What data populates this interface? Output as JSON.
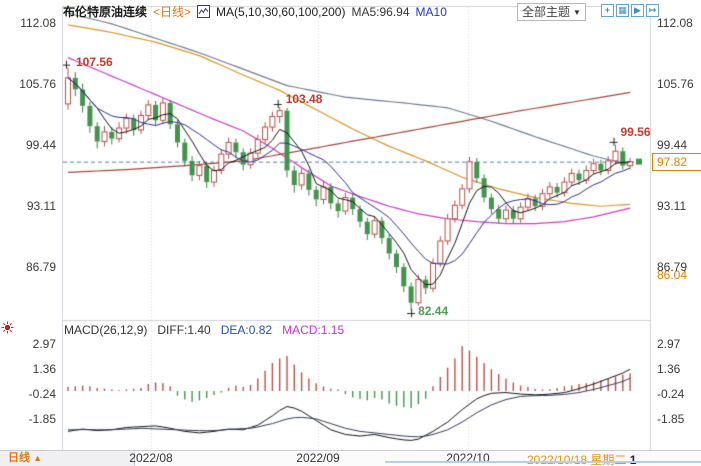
{
  "header": {
    "symbol": "布伦特原油连续",
    "period": "<日线>",
    "ma_settings": "MA(5,10,30,60,100,200)",
    "ma5": "MA5:96.94",
    "ma10": "MA10",
    "theme_selector": "全部主题",
    "theme_arrow": "▼",
    "toolbar_glyphs": [
      "+",
      "▦",
      "▶",
      "↦"
    ]
  },
  "macd_pane": {
    "legend_name": "MACD(26,12,9)",
    "diff_label": "DIFF:1.40",
    "dea_label": "DEA:0.82",
    "macd_label": "MACD:1.15"
  },
  "footer": {
    "period": "日线",
    "arrow": "▲"
  },
  "x_axis": {
    "current_date": "2022/10/18 星期二",
    "current_suffix": "1"
  },
  "colors": {
    "up": "#b5524c",
    "down": "#44934e",
    "down_stroke": "#37813f",
    "dashed_line": "#4d87ae",
    "current_price": "#e08200",
    "annotation_red": "#c5392c",
    "annotation_green": "#4ca050",
    "ma5": "#151515",
    "ma10": "#2b2f92",
    "ma30": "#cb3fc3",
    "ma60": "#d9962a",
    "ma100": "#6f7d90",
    "ma200": "#a2463e",
    "macd_diff": "#151515",
    "macd_dea": "#333a55",
    "frame": "#cfd2da",
    "grid": "#d8dae4",
    "marker": "#222222",
    "close_marker": "#3a9a43"
  },
  "chart_data": {
    "type": "candlestick",
    "title": "布伦特原油连续 <日线>",
    "interval": "daily",
    "price_axis_ticks": [
      112.08,
      105.76,
      99.44,
      93.11,
      86.79
    ],
    "latest_price": 97.82,
    "low_axis_label": 86.04,
    "macd_axis_ticks": [
      2.97,
      1.36,
      -0.24,
      -1.85
    ],
    "x_tick_labels": [
      "2022/08",
      "2022/09",
      "2022/10"
    ],
    "last_date": "2022/10/18 星期二",
    "annotations": [
      {
        "label": "107.56",
        "value": 107.56,
        "index": 0,
        "at": "high",
        "color": "#c5392c"
      },
      {
        "label": "103.48",
        "value": 103.48,
        "index": 29,
        "at": "high",
        "color": "#c5392c"
      },
      {
        "label": "82.44",
        "value": 82.44,
        "index": 47,
        "at": "low",
        "color": "#4ca050"
      },
      {
        "label": "99.56",
        "value": 99.56,
        "index": 75,
        "at": "high",
        "color": "#c5392c"
      }
    ],
    "candles": [
      [
        103.8,
        107.56,
        103.2,
        106.5
      ],
      [
        106.5,
        107.1,
        104.6,
        105.3
      ],
      [
        105.3,
        105.9,
        102.9,
        103.6
      ],
      [
        103.6,
        104.0,
        100.8,
        101.5
      ],
      [
        101.5,
        101.9,
        99.2,
        99.9
      ],
      [
        99.9,
        101.5,
        99.4,
        100.9
      ],
      [
        100.9,
        101.4,
        99.6,
        100.2
      ],
      [
        100.2,
        101.9,
        99.8,
        101.3
      ],
      [
        101.3,
        102.8,
        100.7,
        102.3
      ],
      [
        102.3,
        102.7,
        100.5,
        101.1
      ],
      [
        101.1,
        103.1,
        100.7,
        102.6
      ],
      [
        102.6,
        104.2,
        102.1,
        103.7
      ],
      [
        103.7,
        104.1,
        101.5,
        102.1
      ],
      [
        102.1,
        104.4,
        101.7,
        103.9
      ],
      [
        103.9,
        104.2,
        101.2,
        101.7
      ],
      [
        101.7,
        102.1,
        99.3,
        99.8
      ],
      [
        99.8,
        100.2,
        97.3,
        97.9
      ],
      [
        97.9,
        98.4,
        95.8,
        96.4
      ],
      [
        96.4,
        97.9,
        95.9,
        97.4
      ],
      [
        97.4,
        97.8,
        95.1,
        95.7
      ],
      [
        95.7,
        97.4,
        95.2,
        96.9
      ],
      [
        96.9,
        99.1,
        96.5,
        98.6
      ],
      [
        98.6,
        100.3,
        98.1,
        99.8
      ],
      [
        99.8,
        100.2,
        98.2,
        98.8
      ],
      [
        98.8,
        99.2,
        96.9,
        97.5
      ],
      [
        97.5,
        99.2,
        97.1,
        98.7
      ],
      [
        98.7,
        100.6,
        98.3,
        100.1
      ],
      [
        100.1,
        101.9,
        99.7,
        101.4
      ],
      [
        101.4,
        103.0,
        100.9,
        102.5
      ],
      [
        102.5,
        103.48,
        101.8,
        103.1
      ],
      [
        103.1,
        103.4,
        96.2,
        96.9
      ],
      [
        96.9,
        97.4,
        94.6,
        95.4
      ],
      [
        95.4,
        97.1,
        94.9,
        96.6
      ],
      [
        96.6,
        97.0,
        94.3,
        94.9
      ],
      [
        94.9,
        95.3,
        93.2,
        93.9
      ],
      [
        93.9,
        95.7,
        93.4,
        95.2
      ],
      [
        95.2,
        95.6,
        92.9,
        93.5
      ],
      [
        93.5,
        93.9,
        92.0,
        92.7
      ],
      [
        92.7,
        94.6,
        92.3,
        94.1
      ],
      [
        94.1,
        94.5,
        92.3,
        92.9
      ],
      [
        92.9,
        93.3,
        91.0,
        91.6
      ],
      [
        91.6,
        92.0,
        89.7,
        90.3
      ],
      [
        90.3,
        92.2,
        89.9,
        91.7
      ],
      [
        91.7,
        92.1,
        89.3,
        89.9
      ],
      [
        89.9,
        90.3,
        87.7,
        88.3
      ],
      [
        88.3,
        88.7,
        86.3,
        86.9
      ],
      [
        86.9,
        87.3,
        84.3,
        84.9
      ],
      [
        84.9,
        85.3,
        82.44,
        83.2
      ],
      [
        83.2,
        86.1,
        82.9,
        85.6
      ],
      [
        85.6,
        86.0,
        84.1,
        84.7
      ],
      [
        84.7,
        87.8,
        84.3,
        87.3
      ],
      [
        87.3,
        90.1,
        86.9,
        89.6
      ],
      [
        89.6,
        92.4,
        89.2,
        91.9
      ],
      [
        91.9,
        93.8,
        91.5,
        93.3
      ],
      [
        93.3,
        95.5,
        92.9,
        95.0
      ],
      [
        95.0,
        98.3,
        94.6,
        97.8
      ],
      [
        97.8,
        98.2,
        95.6,
        96.1
      ],
      [
        96.1,
        96.5,
        93.6,
        94.1
      ],
      [
        94.1,
        94.5,
        92.4,
        92.9
      ],
      [
        92.9,
        93.3,
        91.4,
        91.9
      ],
      [
        91.9,
        93.3,
        91.5,
        92.8
      ],
      [
        92.8,
        93.2,
        91.4,
        91.9
      ],
      [
        91.9,
        93.6,
        91.5,
        93.1
      ],
      [
        93.1,
        94.5,
        92.7,
        94.0
      ],
      [
        94.0,
        94.4,
        92.7,
        93.2
      ],
      [
        93.2,
        95.0,
        92.8,
        94.5
      ],
      [
        94.5,
        95.7,
        94.1,
        95.2
      ],
      [
        95.2,
        95.6,
        94.1,
        94.6
      ],
      [
        94.6,
        96.2,
        94.2,
        95.7
      ],
      [
        95.7,
        97.1,
        95.3,
        96.6
      ],
      [
        96.6,
        97.0,
        95.4,
        95.9
      ],
      [
        95.9,
        97.4,
        95.5,
        96.9
      ],
      [
        96.9,
        98.1,
        96.5,
        97.6
      ],
      [
        97.6,
        98.0,
        96.4,
        96.9
      ],
      [
        96.9,
        98.4,
        96.5,
        97.9
      ],
      [
        97.9,
        99.56,
        97.5,
        98.9
      ],
      [
        98.9,
        99.3,
        97.0,
        97.4
      ],
      [
        97.4,
        98.2,
        97.0,
        97.82
      ]
    ],
    "ma_fast": [
      {
        "name": "MA5",
        "window": 5,
        "color": "#151515"
      },
      {
        "name": "MA10",
        "window": 10,
        "color": "#2b2f92"
      }
    ],
    "ma_overlays": [
      {
        "name": "MA30",
        "color": "#cb3fc3",
        "points": [
          [
            0,
            108.6
          ],
          [
            5,
            107.0
          ],
          [
            10,
            105.4
          ],
          [
            15,
            103.8
          ],
          [
            20,
            102.2
          ],
          [
            24,
            101.0
          ],
          [
            28,
            99.2
          ],
          [
            32,
            97.2
          ],
          [
            36,
            95.3
          ],
          [
            40,
            94.2
          ],
          [
            44,
            93.2
          ],
          [
            48,
            92.4
          ],
          [
            52,
            91.9
          ],
          [
            56,
            91.6
          ],
          [
            60,
            91.4
          ],
          [
            64,
            91.4
          ],
          [
            68,
            91.6
          ],
          [
            72,
            92.1
          ],
          [
            77,
            93.0
          ]
        ]
      },
      {
        "name": "MA60",
        "color": "#d9962a",
        "points": [
          [
            0,
            112.0
          ],
          [
            6,
            111.2
          ],
          [
            12,
            110.2
          ],
          [
            18,
            108.8
          ],
          [
            24,
            106.8
          ],
          [
            29,
            105.2
          ],
          [
            34,
            103.2
          ],
          [
            39,
            101.2
          ],
          [
            44,
            99.4
          ],
          [
            49,
            97.9
          ],
          [
            54,
            96.2
          ],
          [
            59,
            95.0
          ],
          [
            64,
            94.1
          ],
          [
            69,
            93.5
          ],
          [
            73,
            93.2
          ],
          [
            77,
            93.4
          ]
        ]
      },
      {
        "name": "MA100",
        "color": "#6f7d90",
        "points": [
          [
            0,
            113.2
          ],
          [
            6,
            112.1
          ],
          [
            12,
            110.6
          ],
          [
            18,
            109.1
          ],
          [
            24,
            107.4
          ],
          [
            30,
            105.7
          ],
          [
            38,
            104.5
          ],
          [
            46,
            103.9
          ],
          [
            52,
            103.4
          ],
          [
            58,
            102.0
          ],
          [
            64,
            100.4
          ],
          [
            68,
            99.4
          ],
          [
            72,
            98.4
          ],
          [
            77,
            97.5
          ]
        ]
      },
      {
        "name": "MA200",
        "color": "#a2463e",
        "points": [
          [
            0,
            96.7
          ],
          [
            8,
            97.0
          ],
          [
            16,
            97.4
          ],
          [
            24,
            97.9
          ],
          [
            30,
            98.7
          ],
          [
            38,
            99.8
          ],
          [
            46,
            100.9
          ],
          [
            54,
            102.0
          ],
          [
            62,
            103.1
          ],
          [
            70,
            104.1
          ],
          [
            77,
            105.0
          ]
        ]
      }
    ],
    "macd": {
      "params": "26,12,9",
      "diff": [
        -2.6,
        -2.52,
        -2.45,
        -2.5,
        -2.55,
        -2.52,
        -2.5,
        -2.42,
        -2.35,
        -2.32,
        -2.3,
        -2.27,
        -2.25,
        -2.32,
        -2.4,
        -2.5,
        -2.6,
        -2.65,
        -2.7,
        -2.65,
        -2.6,
        -2.52,
        -2.45,
        -2.47,
        -2.5,
        -2.35,
        -2.2,
        -1.9,
        -1.6,
        -1.25,
        -1.0,
        -1.1,
        -1.3,
        -1.6,
        -1.9,
        -2.2,
        -2.5,
        -2.65,
        -2.8,
        -2.85,
        -2.9,
        -2.85,
        -2.8,
        -2.9,
        -3.0,
        -3.08,
        -3.15,
        -3.18,
        -3.1,
        -2.85,
        -2.6,
        -2.3,
        -2.0,
        -1.6,
        -1.2,
        -0.85,
        -0.5,
        -0.3,
        -0.15,
        -0.12,
        -0.1,
        -0.15,
        -0.2,
        -0.22,
        -0.25,
        -0.23,
        -0.2,
        -0.15,
        -0.1,
        0.02,
        0.15,
        0.3,
        0.45,
        0.62,
        0.8,
        0.98,
        1.15,
        1.4
      ],
      "dea": [
        -2.5,
        -2.5,
        -2.49,
        -2.49,
        -2.5,
        -2.5,
        -2.49,
        -2.47,
        -2.45,
        -2.43,
        -2.4,
        -2.42,
        -2.44,
        -2.46,
        -2.48,
        -2.5,
        -2.52,
        -2.54,
        -2.55,
        -2.56,
        -2.55,
        -2.52,
        -2.48,
        -2.45,
        -2.42,
        -2.4,
        -2.32,
        -2.2,
        -2.1,
        -1.95,
        -1.8,
        -1.72,
        -1.7,
        -1.74,
        -1.8,
        -1.95,
        -2.1,
        -2.25,
        -2.4,
        -2.5,
        -2.6,
        -2.65,
        -2.7,
        -2.75,
        -2.8,
        -2.85,
        -2.9,
        -2.93,
        -2.95,
        -2.9,
        -2.8,
        -2.65,
        -2.5,
        -2.25,
        -2.0,
        -1.7,
        -1.4,
        -1.15,
        -0.9,
        -0.72,
        -0.55,
        -0.45,
        -0.35,
        -0.32,
        -0.3,
        -0.29,
        -0.28,
        -0.25,
        -0.22,
        -0.16,
        -0.1,
        0.0,
        0.1,
        0.22,
        0.35,
        0.48,
        0.62,
        0.82
      ],
      "hist": [
        0.25,
        0.3,
        0.35,
        0.3,
        0.2,
        0.15,
        0.1,
        0.05,
        0.1,
        0.15,
        0.2,
        0.45,
        0.55,
        0.5,
        0.3,
        -0.3,
        -0.55,
        -0.7,
        -0.6,
        -0.45,
        -0.25,
        -0.1,
        0.2,
        0.35,
        0.25,
        0.4,
        0.8,
        1.3,
        1.8,
        2.1,
        2.25,
        1.7,
        1.2,
        0.8,
        0.5,
        0.3,
        0.15,
        0.1,
        -0.2,
        -0.4,
        -0.5,
        -0.6,
        -0.45,
        -0.55,
        -0.8,
        -0.95,
        -1.05,
        -1.1,
        -0.85,
        -0.5,
        0.3,
        0.9,
        1.5,
        2.1,
        2.9,
        2.6,
        2.2,
        1.8,
        1.4,
        1.1,
        0.8,
        0.55,
        0.35,
        0.25,
        0.15,
        0.1,
        0.12,
        0.2,
        0.3,
        0.35,
        0.45,
        0.5,
        0.6,
        0.7,
        0.8,
        0.95,
        1.05,
        1.15
      ]
    }
  }
}
